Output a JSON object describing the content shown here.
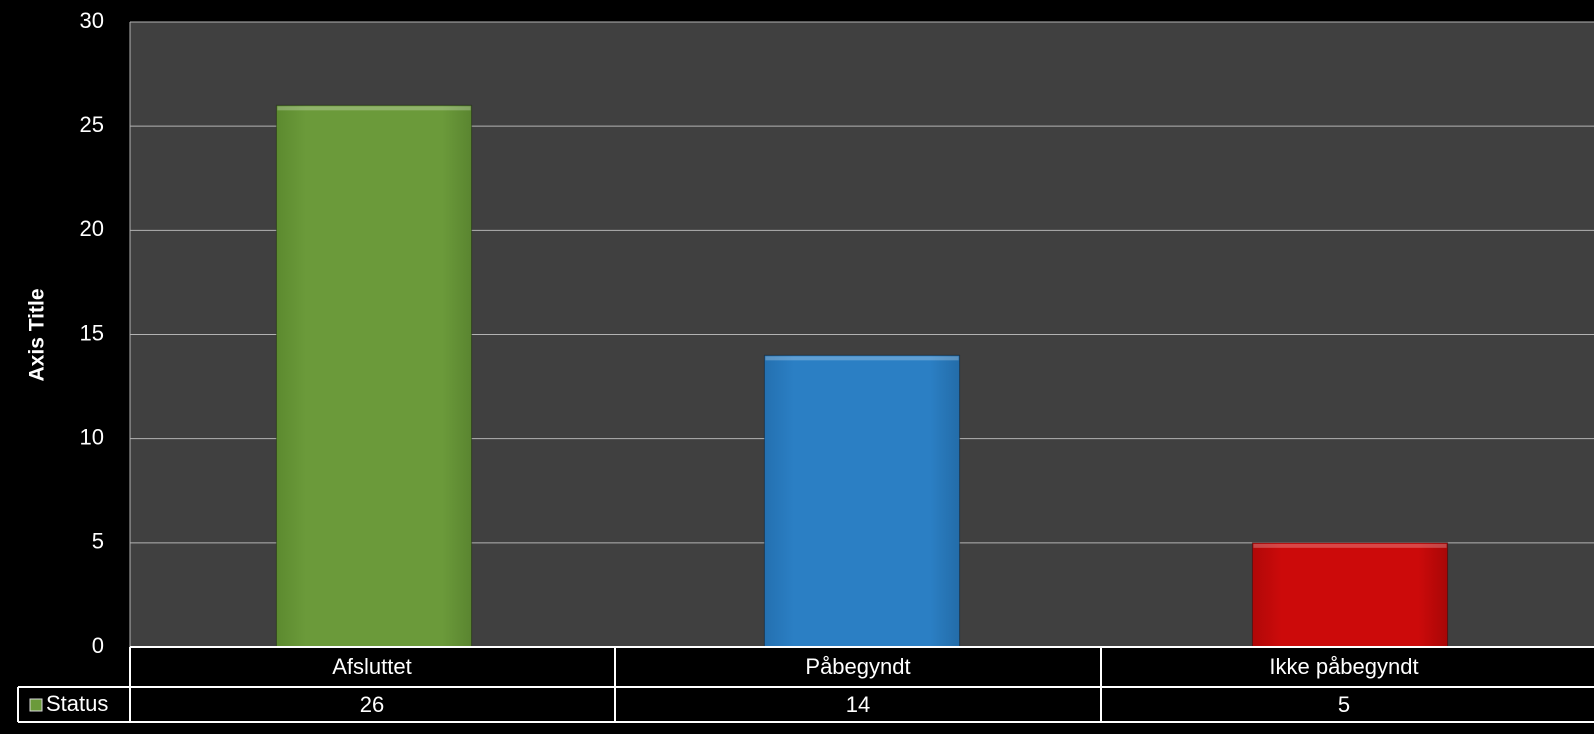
{
  "chart_data": {
    "type": "bar",
    "title": "",
    "xlabel": "",
    "ylabel": "Axis Title",
    "ylim": [
      0,
      30
    ],
    "yticks": [
      0,
      5,
      10,
      15,
      20,
      25,
      30
    ],
    "grid": true,
    "legend_placement": "data-table",
    "categories": [
      "Afsluttet",
      "Påbegyndt",
      "Ikke påbegyndt"
    ],
    "series": [
      {
        "name": "Status",
        "values": [
          26,
          14,
          5
        ],
        "colors": [
          "#6b9a3a",
          "#2b7fc4",
          "#cc0a0a"
        ]
      }
    ],
    "data_table": {
      "row_label": "Status",
      "values": [
        "26",
        "14",
        "5"
      ]
    }
  },
  "colors": {
    "background": "#000000",
    "plot_area": "#404040",
    "gridline": "#b3b3b3",
    "text": "#ffffff",
    "legend_marker": "#6b9a3a"
  }
}
